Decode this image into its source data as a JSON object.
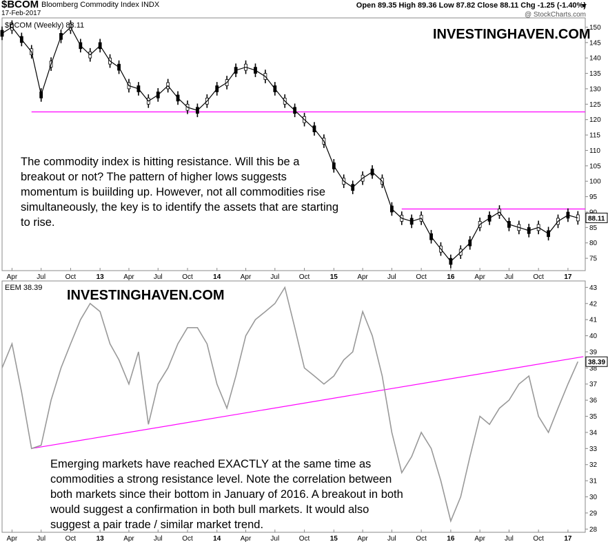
{
  "header": {
    "symbol": "$BCOM",
    "name": "Bloomberg Commodity Index INDX",
    "date": "17-Feb-2017",
    "quote": "Open 89.35   High 89.36   Low 87.82   Close 88.11   Chg -1.25 (-1.40%)",
    "watermark": "@ StockCharts.com"
  },
  "colors": {
    "price": "#000000",
    "eem_line": "#999999",
    "trendline": "#ff00ff",
    "axis": "#888888"
  },
  "icons": {
    "quote_dropdown": "chevron-down-icon"
  },
  "top_panel": {
    "legend": "$BCOM (Weekly) 88.11",
    "watermark": "INVESTINGHAVEN.COM",
    "annotation": "The commodity index is hitting resistance. Will this be a breakout or not? The pattern of higher lows suggests momentum is buiilding up. However, not all commodities rise simultaneously, the key is to identify the assets that are starting to rise.",
    "last_value_label": "88.11"
  },
  "bottom_panel": {
    "legend": "EEM 38.39",
    "watermark": "INVESTINGHAVEN.COM",
    "annotation": "Emerging markets have reached EXACTLY at the same time as commodities a strong resistance level. Note the correlation between both markets since their bottom in January of 2016. A breakout in both would suggest a confirmation in both bull markets. It would also suggest a pair trade / similar market trend.",
    "last_value_label": "38.39"
  },
  "chart_data": [
    {
      "type": "line",
      "title": "$BCOM (Weekly) 88.11",
      "x_tick_labels": [
        "Apr",
        "Jul",
        "Oct",
        "13",
        "Apr",
        "Jul",
        "Oct",
        "14",
        "Apr",
        "Jul",
        "Oct",
        "15",
        "Apr",
        "Jul",
        "Oct",
        "16",
        "Apr",
        "Jul",
        "Oct",
        "17"
      ],
      "y_ticks": [
        75,
        80,
        85,
        90,
        95,
        100,
        105,
        110,
        115,
        120,
        125,
        130,
        135,
        140,
        145,
        150
      ],
      "ylim": [
        71,
        153
      ],
      "grid": false,
      "series": [
        {
          "x": [
            "2012-03",
            "2012-04",
            "2012-05",
            "2012-06",
            "2012-07",
            "2012-08",
            "2012-09",
            "2012-10",
            "2012-11",
            "2012-12",
            "2013-01",
            "2013-02",
            "2013-03",
            "2013-04",
            "2013-05",
            "2013-06",
            "2013-07",
            "2013-08",
            "2013-09",
            "2013-10",
            "2013-11",
            "2013-12",
            "2014-01",
            "2014-02",
            "2014-03",
            "2014-04",
            "2014-05",
            "2014-06",
            "2014-07",
            "2014-08",
            "2014-09",
            "2014-10",
            "2014-11",
            "2014-12",
            "2015-01",
            "2015-02",
            "2015-03",
            "2015-04",
            "2015-05",
            "2015-06",
            "2015-07",
            "2015-08",
            "2015-09",
            "2015-10",
            "2015-11",
            "2015-12",
            "2016-01",
            "2016-02",
            "2016-03",
            "2016-04",
            "2016-05",
            "2016-06",
            "2016-07",
            "2016-08",
            "2016-09",
            "2016-10",
            "2016-11",
            "2016-12",
            "2017-01",
            "2017-02"
          ],
          "values": [
            148,
            150,
            146,
            142,
            128,
            138,
            147,
            150,
            144,
            141,
            144,
            139,
            137,
            131,
            130,
            126,
            128,
            131,
            127,
            124,
            123,
            126,
            130,
            132,
            136,
            137,
            136,
            134,
            130,
            126,
            123,
            120,
            117,
            113,
            105,
            100,
            98,
            101,
            103,
            100,
            91,
            88,
            87,
            88,
            82,
            78,
            74,
            77,
            80,
            86,
            88,
            90,
            86,
            85,
            84,
            85,
            83,
            87,
            89,
            88.11
          ]
        }
      ],
      "reference_lines": [
        122.5,
        91
      ]
    },
    {
      "type": "line",
      "title": "EEM 38.39",
      "x_tick_labels": [
        "Apr",
        "Jul",
        "Oct",
        "13",
        "Apr",
        "Jul",
        "Oct",
        "14",
        "Apr",
        "Jul",
        "Oct",
        "15",
        "Apr",
        "Jul",
        "Oct",
        "16",
        "Apr",
        "Jul",
        "Oct",
        "17"
      ],
      "y_ticks": [
        28,
        29,
        30,
        31,
        32,
        33,
        34,
        35,
        36,
        37,
        38,
        39,
        40,
        41,
        42,
        43
      ],
      "ylim": [
        27.8,
        43.4
      ],
      "grid": false,
      "series": [
        {
          "x": [
            "2012-03",
            "2012-04",
            "2012-05",
            "2012-06",
            "2012-07",
            "2012-08",
            "2012-09",
            "2012-10",
            "2012-11",
            "2012-12",
            "2013-01",
            "2013-02",
            "2013-03",
            "2013-04",
            "2013-05",
            "2013-06",
            "2013-07",
            "2013-08",
            "2013-09",
            "2013-10",
            "2013-11",
            "2013-12",
            "2014-01",
            "2014-02",
            "2014-03",
            "2014-04",
            "2014-05",
            "2014-06",
            "2014-07",
            "2014-08",
            "2014-09",
            "2014-10",
            "2014-11",
            "2014-12",
            "2015-01",
            "2015-02",
            "2015-03",
            "2015-04",
            "2015-05",
            "2015-06",
            "2015-07",
            "2015-08",
            "2015-09",
            "2015-10",
            "2015-11",
            "2015-12",
            "2016-01",
            "2016-02",
            "2016-03",
            "2016-04",
            "2016-05",
            "2016-06",
            "2016-07",
            "2016-08",
            "2016-09",
            "2016-10",
            "2016-11",
            "2016-12",
            "2017-01",
            "2017-02"
          ],
          "values": [
            38,
            39.5,
            36.5,
            33,
            33.2,
            36,
            38,
            39.5,
            41,
            42,
            41.5,
            39.5,
            38.5,
            37,
            39,
            34.5,
            37,
            38,
            39.5,
            40.5,
            40.5,
            39.5,
            37,
            35.5,
            37.5,
            40,
            41,
            41.5,
            42,
            43,
            40.5,
            38,
            37.5,
            37,
            37.5,
            38.5,
            39,
            41.5,
            40,
            37.5,
            34,
            31.5,
            32.5,
            34,
            33,
            31,
            28.5,
            30,
            32.5,
            35,
            34.5,
            35.5,
            36,
            37,
            37.5,
            35,
            34,
            35.5,
            37,
            38.39
          ]
        }
      ],
      "reference_lines": [
        {
          "x": [
            "2012-06",
            "2017-02"
          ],
          "y": [
            33,
            38.7
          ]
        }
      ]
    }
  ]
}
